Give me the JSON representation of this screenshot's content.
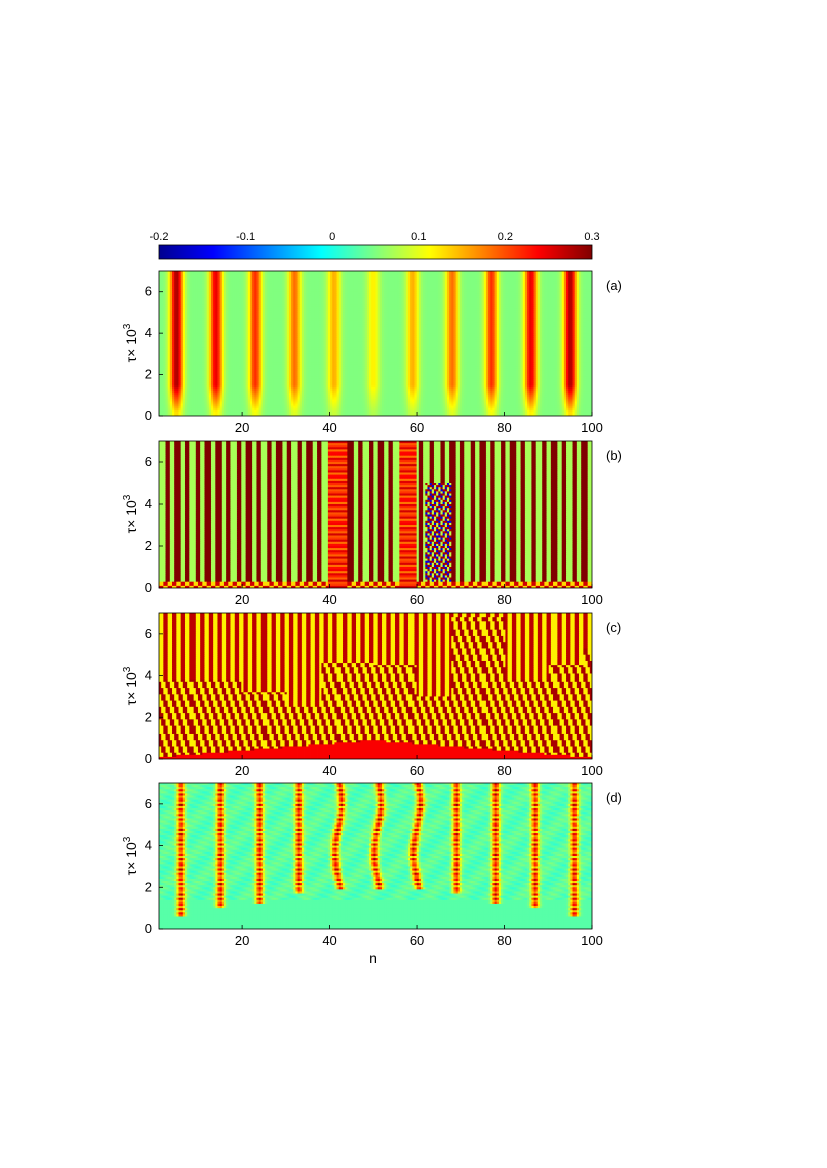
{
  "colorbar": {
    "ticks": [
      "-0.2",
      "-0.1",
      "0",
      "0.1",
      "0.2",
      "0.3"
    ],
    "tick_values": [
      -0.2,
      -0.1,
      0,
      0.1,
      0.2,
      0.3
    ],
    "range": [
      -0.2,
      0.3
    ],
    "colormap": "jet"
  },
  "xlabel": "n",
  "ylabel_main": "τ× 10",
  "ylabel_sup": "3",
  "chart_data": [
    {
      "type": "heatmap",
      "panel_label": "(a)",
      "pattern": "eleven stationary peaks, red ridges ~0.28 near edges, yellow ~0.12 in center, background ~0.05",
      "xlim": [
        1,
        100
      ],
      "ylim": [
        0,
        7
      ],
      "xticks": [
        "20",
        "40",
        "60",
        "80",
        "100"
      ],
      "yticks": [
        "0",
        "2",
        "4",
        "6"
      ],
      "peak_positions_n": [
        5,
        14,
        23,
        32,
        41,
        50,
        59,
        68,
        77,
        86,
        95
      ],
      "peak_value_edge": 0.28,
      "peak_value_center": 0.12,
      "background_value": 0.05
    },
    {
      "type": "heatmap",
      "panel_label": "(b)",
      "pattern": "alternating dark-red / green stripes with two solid red bands near n=42 and n=58 and a patterned region near n=65",
      "xlim": [
        1,
        100
      ],
      "ylim": [
        0,
        7
      ],
      "xticks": [
        "20",
        "40",
        "60",
        "80",
        "100"
      ],
      "yticks": [
        "0",
        "2",
        "4",
        "6"
      ],
      "red_bands_n": [
        42,
        58
      ],
      "patterned_region_n": [
        62,
        68
      ],
      "patterned_region_tau_top": 5.0
    },
    {
      "type": "heatmap",
      "panel_label": "(c)",
      "pattern": "dense red / yellow-green vertical stripes on orange background with staircase transition region",
      "xlim": [
        1,
        100
      ],
      "ylim": [
        0,
        7
      ],
      "xticks": [
        "20",
        "40",
        "60",
        "80",
        "100"
      ],
      "yticks": [
        "0",
        "2",
        "4",
        "6"
      ],
      "transition_tau_top_n": [
        [
          5,
          3.8
        ],
        [
          20,
          3.2
        ],
        [
          30,
          2.5
        ],
        [
          38,
          4.6
        ],
        [
          50,
          4.5
        ],
        [
          60,
          3.0
        ],
        [
          68,
          6.8
        ],
        [
          80,
          3.8
        ],
        [
          90,
          4.5
        ],
        [
          98,
          5.3
        ]
      ]
    },
    {
      "type": "heatmap",
      "panel_label": "(d)",
      "pattern": "eleven dotted red chains on cyan background emerging at tau ~1 to ~2.2",
      "xlim": [
        1,
        100
      ],
      "ylim": [
        0,
        7
      ],
      "xticks": [
        "20",
        "40",
        "60",
        "80",
        "100"
      ],
      "yticks": [
        "0",
        "2",
        "4",
        "6"
      ],
      "chain_positions_n": [
        6,
        15,
        24,
        33,
        42,
        51,
        60,
        69,
        78,
        87,
        96
      ],
      "chain_onset_tau": [
        0.9,
        1.2,
        1.5,
        2.0,
        2.2,
        2.2,
        2.2,
        2.0,
        1.4,
        1.2,
        0.9
      ],
      "background_value": 0.03,
      "chain_value": 0.27
    }
  ]
}
